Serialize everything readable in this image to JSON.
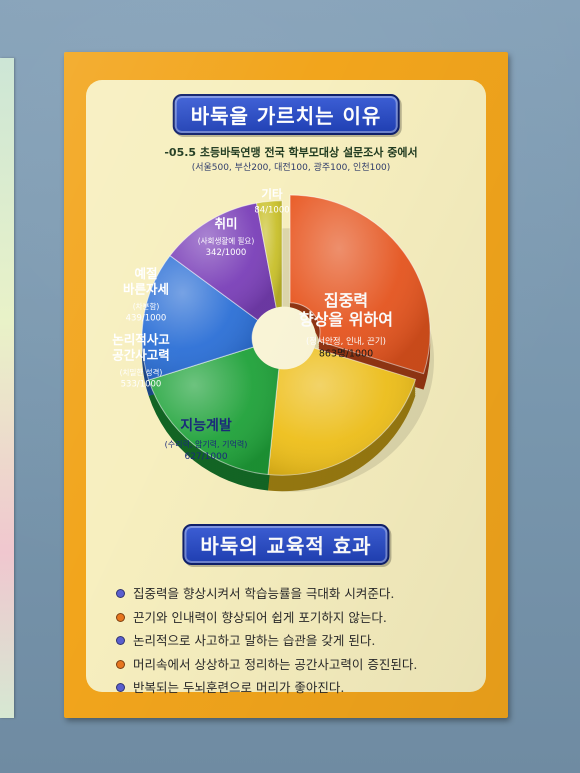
{
  "poster": {
    "title": "바둑을 가르치는 이유",
    "survey_line": "-05.5 초등바둑연맹 전국 학부모대상 설문조사 중에서",
    "survey_sample": "(서울500, 부산200, 대전100, 광주100, 인천100)",
    "section2_title": "바둑의 교육적 효과"
  },
  "chart_data": {
    "type": "pie",
    "title": "",
    "unit_total": 1000,
    "slices": [
      {
        "name": "집중력 향상을 위하여",
        "sub": "(정서안정, 인내, 끈기)",
        "label": "863명/1000",
        "value": 863,
        "color": "#e9561f",
        "text_color": "#ffffff"
      },
      {
        "name": "지능계발",
        "sub": "(수리력, 암기력, 기억력)",
        "label": "627/1000",
        "value": 627,
        "color": "#f2c21a",
        "text_color": "#1a2a7a"
      },
      {
        "name": "논리적사고 공간사고력",
        "sub": "(치밀한 성격)",
        "label": "533/1000",
        "value": 533,
        "color": "#1fa33a",
        "text_color": "#ffffff"
      },
      {
        "name": "예절 바른자세",
        "sub": "(차분함)",
        "label": "439/1000",
        "value": 439,
        "color": "#2b6fd6",
        "text_color": "#ffffff"
      },
      {
        "name": "취미",
        "sub": "(사회생활에 필요)",
        "label": "342/1000",
        "value": 342,
        "color": "#7a3fb8",
        "text_color": "#ffffff"
      },
      {
        "name": "기타",
        "sub": "",
        "label": "84/1000",
        "value": 84,
        "color": "#c9c02a",
        "text_color": "#ffffff"
      }
    ]
  },
  "benefits": [
    {
      "text": "집중력을 향상시켜서 학습능률을 극대화 시켜준다.",
      "dot": "#5a5fd0"
    },
    {
      "text": "끈기와 인내력이 향상되어 쉽게 포기하지 않는다.",
      "dot": "#e8761f"
    },
    {
      "text": "논리적으로 사고하고 말하는 습관을 갖게 된다.",
      "dot": "#5a5fd0"
    },
    {
      "text": "머리속에서 상상하고 정리하는 공간사고력이 증진된다.",
      "dot": "#e8761f"
    },
    {
      "text": "반복되는 두뇌훈련으로 머리가 좋아진다.",
      "dot": "#5a5fd0"
    }
  ]
}
